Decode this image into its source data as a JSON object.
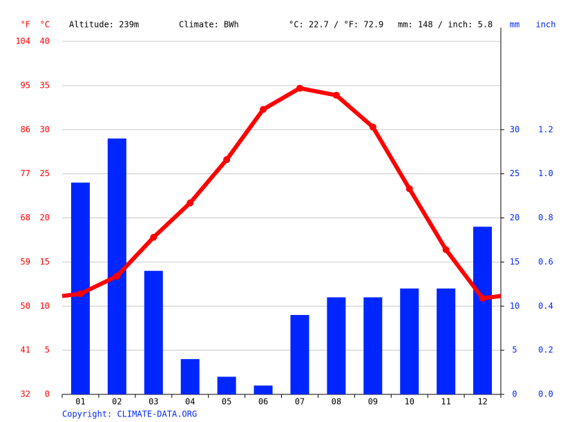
{
  "chart_data": {
    "type": "combo",
    "header": [
      "Altitude: 239m",
      "Climate: BWh",
      "°C: 22.7 / °F: 72.9",
      "mm: 148 / inch: 5.8"
    ],
    "copyright": "Copyright: CLIMATE-DATA.ORG",
    "categories": [
      "01",
      "02",
      "03",
      "04",
      "05",
      "06",
      "07",
      "08",
      "09",
      "10",
      "11",
      "12"
    ],
    "axes": {
      "f": {
        "label": "°F",
        "color": "#ff0000",
        "lim": [
          32,
          104
        ],
        "ticks": [
          32,
          41,
          50,
          59,
          68,
          77,
          86,
          95,
          104
        ]
      },
      "c": {
        "label": "°C",
        "color": "#ff0000",
        "lim": [
          0,
          40
        ],
        "ticks": [
          0,
          5,
          10,
          15,
          20,
          25,
          30,
          35,
          40
        ]
      },
      "mm": {
        "label": "mm",
        "color": "#0026ff",
        "lim": [
          0,
          40
        ],
        "ticks": [
          0,
          5,
          10,
          15,
          20,
          25,
          30
        ]
      },
      "inch": {
        "label": "inch",
        "color": "#0026ff",
        "lim": [
          0,
          1.6
        ],
        "ticks": [
          {
            "value": 0,
            "label": "0.0"
          },
          0.2,
          0.4,
          0.6,
          0.8,
          {
            "value": 1,
            "label": "1.0"
          },
          1.2
        ]
      }
    },
    "grid": true,
    "series": [
      {
        "type": "bar",
        "axis": "mm",
        "color": "#0026ff",
        "values": [
          24,
          29,
          14,
          4,
          2,
          1,
          9,
          11,
          11,
          12,
          12,
          19
        ]
      },
      {
        "type": "line",
        "axis": "c",
        "color": "#ff0000",
        "values": [
          11.4,
          13.4,
          17.8,
          21.7,
          26.6,
          32.3,
          34.7,
          33.9,
          30.3,
          23.3,
          16.4,
          10.9
        ]
      }
    ]
  }
}
